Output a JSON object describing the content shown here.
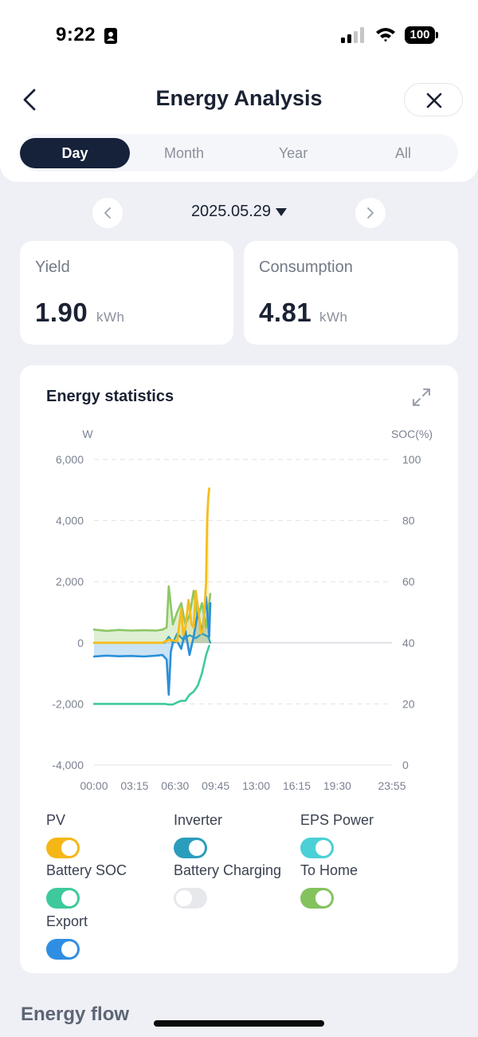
{
  "status_bar": {
    "time": "9:22",
    "battery": "100"
  },
  "header": {
    "title": "Energy Analysis"
  },
  "tabs": [
    {
      "label": "Day",
      "active": true
    },
    {
      "label": "Month",
      "active": false
    },
    {
      "label": "Year",
      "active": false
    },
    {
      "label": "All",
      "active": false
    }
  ],
  "date_picker": {
    "value": "2025.05.29"
  },
  "summary": {
    "yield": {
      "label": "Yield",
      "value": "1.90",
      "unit": "kWh"
    },
    "consumption": {
      "label": "Consumption",
      "value": "4.81",
      "unit": "kWh"
    }
  },
  "energy_statistics": {
    "title": "Energy statistics"
  },
  "chart_data": {
    "type": "line",
    "left_axis": {
      "label": "W",
      "ticks": [
        "6,000",
        "4,000",
        "2,000",
        "0",
        "-2,000",
        "-4,000"
      ],
      "ylim": [
        -4000,
        6000
      ]
    },
    "right_axis": {
      "label": "SOC(%)",
      "ticks": [
        "100",
        "80",
        "60",
        "40",
        "20",
        "0"
      ],
      "ylim": [
        0,
        100
      ]
    },
    "x_ticks": [
      "00:00",
      "03:15",
      "06:30",
      "09:45",
      "13:00",
      "16:15",
      "19:30",
      "23:55"
    ],
    "x_range_minutes": [
      0,
      1435
    ],
    "grid": "horizontal dashed",
    "series": [
      {
        "name": "PV",
        "axis": "left",
        "color": "#f5bd1e",
        "x": [
          0,
          330,
          360,
          400,
          420,
          430,
          440,
          455,
          470,
          480,
          490,
          505,
          515,
          525,
          535,
          540,
          545,
          550,
          555
        ],
        "y": [
          0,
          0,
          100,
          50,
          1100,
          250,
          500,
          1400,
          600,
          500,
          1700,
          950,
          300,
          400,
          1400,
          2000,
          4000,
          4700,
          5050
        ]
      },
      {
        "name": "To Home",
        "axis": "left",
        "color": "#8cc764",
        "x": [
          0,
          60,
          120,
          180,
          240,
          300,
          330,
          350,
          360,
          380,
          400,
          420,
          440,
          460,
          480,
          500,
          520,
          540,
          560
        ],
        "y": [
          430,
          390,
          420,
          400,
          410,
          400,
          430,
          500,
          1850,
          600,
          1000,
          1300,
          600,
          900,
          1700,
          800,
          1300,
          500,
          1600
        ]
      },
      {
        "name": "Export",
        "axis": "left",
        "color": "#2b8fd8",
        "x": [
          0,
          60,
          120,
          180,
          240,
          300,
          330,
          350,
          360,
          370,
          380,
          400,
          420,
          440,
          460,
          480,
          500,
          520,
          540,
          555,
          560
        ],
        "y": [
          -450,
          -420,
          -440,
          -430,
          -450,
          -420,
          -400,
          -550,
          -1700,
          -300,
          0,
          50,
          -200,
          400,
          -400,
          200,
          1000,
          300,
          1500,
          200,
          1300
        ]
      },
      {
        "name": "Battery SOC",
        "axis": "right",
        "color": "#3ec99d",
        "x": [
          0,
          120,
          240,
          340,
          360,
          380,
          400,
          420,
          440,
          460,
          480,
          500,
          520,
          540,
          555
        ],
        "y": [
          20,
          20,
          20,
          20,
          19.8,
          19.8,
          20.5,
          21,
          21,
          23,
          24,
          26,
          30,
          36,
          39
        ]
      },
      {
        "name": "Inverter",
        "axis": "left",
        "color": "#2a9dbd",
        "x": [
          0,
          340,
          360,
          380,
          400,
          430,
          460,
          490,
          520,
          550,
          560
        ],
        "y": [
          0,
          0,
          200,
          0,
          300,
          100,
          250,
          150,
          300,
          200,
          0
        ]
      }
    ]
  },
  "legend": [
    {
      "label": "PV",
      "on": true,
      "color": "#f5b716"
    },
    {
      "label": "Inverter",
      "on": true,
      "color": "#2a9dbd"
    },
    {
      "label": "EPS Power",
      "on": true,
      "color": "#4ad0d6"
    },
    {
      "label": "Battery SOC",
      "on": true,
      "color": "#3ec99d"
    },
    {
      "label": "Battery Charging",
      "on": false,
      "color": "#e6e8ec"
    },
    {
      "label": "To Home",
      "on": true,
      "color": "#84c25e"
    },
    {
      "label": "Export",
      "on": true,
      "color": "#2f8ee3"
    }
  ],
  "energy_flow": {
    "title": "Energy flow"
  }
}
